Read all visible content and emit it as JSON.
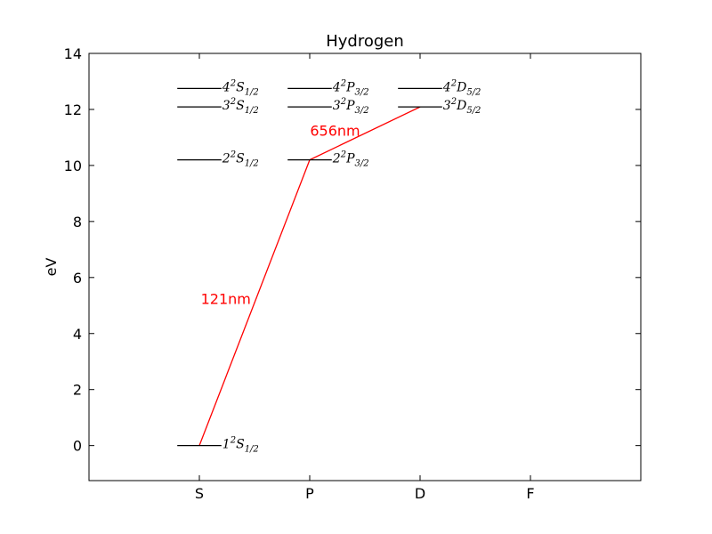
{
  "chart_data": {
    "type": "line",
    "title": "Hydrogen",
    "xlabel": "",
    "ylabel": "eV",
    "categories": [
      "S",
      "P",
      "D",
      "F"
    ],
    "xlim": [
      -1,
      4
    ],
    "ylim": [
      -1.25,
      14
    ],
    "yticks": [
      0,
      2,
      4,
      6,
      8,
      10,
      12,
      14
    ],
    "grid": false,
    "levels": [
      {
        "category": "S",
        "energy": 0.0,
        "n": "1",
        "mult": "2",
        "term": "S",
        "j": "1/2"
      },
      {
        "category": "S",
        "energy": 10.2,
        "n": "2",
        "mult": "2",
        "term": "S",
        "j": "1/2"
      },
      {
        "category": "S",
        "energy": 12.09,
        "n": "3",
        "mult": "2",
        "term": "S",
        "j": "1/2"
      },
      {
        "category": "S",
        "energy": 12.75,
        "n": "4",
        "mult": "2",
        "term": "S",
        "j": "1/2"
      },
      {
        "category": "P",
        "energy": 10.2,
        "n": "2",
        "mult": "2",
        "term": "P",
        "j": "3/2"
      },
      {
        "category": "P",
        "energy": 12.09,
        "n": "3",
        "mult": "2",
        "term": "P",
        "j": "3/2"
      },
      {
        "category": "P",
        "energy": 12.75,
        "n": "4",
        "mult": "2",
        "term": "P",
        "j": "3/2"
      },
      {
        "category": "D",
        "energy": 12.09,
        "n": "3",
        "mult": "2",
        "term": "D",
        "j": "5/2"
      },
      {
        "category": "D",
        "energy": 12.75,
        "n": "4",
        "mult": "2",
        "term": "D",
        "j": "5/2"
      }
    ],
    "transitions": [
      {
        "from": {
          "category": "S",
          "energy": 0.0
        },
        "to": {
          "category": "P",
          "energy": 10.2
        },
        "label": "121nm",
        "label_at": {
          "x": 0.24,
          "y": 5.2
        }
      },
      {
        "from": {
          "category": "P",
          "energy": 10.2
        },
        "to": {
          "category": "D",
          "energy": 12.09
        },
        "label": "656nm",
        "label_at": {
          "x": 1.23,
          "y": 11.2
        }
      }
    ],
    "colors": {
      "transition": "#ff0000",
      "level": "#000000",
      "axis": "#000000"
    }
  }
}
